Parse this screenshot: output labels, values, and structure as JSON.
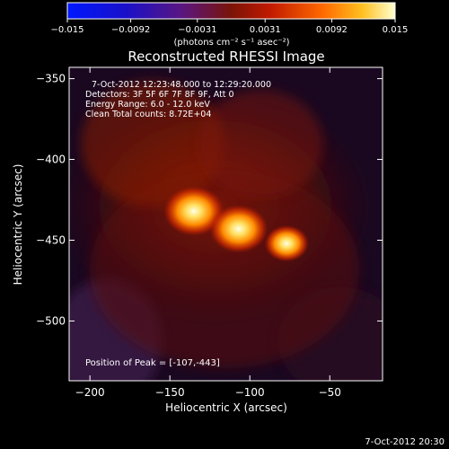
{
  "colorbar": {
    "tick_labels": [
      "-0.015",
      "-0.0092",
      "-0.0031",
      "0.0031",
      "0.0092",
      "0.015"
    ],
    "unit_label": "(photons cm⁻² s⁻¹ asec⁻²)",
    "range": [
      -0.015,
      0.015
    ]
  },
  "chart_data": {
    "type": "heatmap",
    "title": "Reconstructed RHESSI Image",
    "xlabel": "Heliocentric X (arcsec)",
    "ylabel": "Heliocentric Y (arcsec)",
    "xlim": [
      -213,
      -17
    ],
    "ylim": [
      -537,
      -343
    ],
    "x_ticks": [
      -200,
      -150,
      -100,
      -50
    ],
    "y_ticks": [
      -350,
      -400,
      -450,
      -500
    ],
    "sources": [
      {
        "x": -135,
        "y": -432,
        "peak": 0.015
      },
      {
        "x": -107,
        "y": -443,
        "peak": 0.0145
      },
      {
        "x": -77,
        "y": -452,
        "peak": 0.011
      }
    ],
    "annotations": [
      "7-Oct-2012 12:23:48.000 to 12:29:20.000",
      "Detectors: 3F 5F 6F 7F 8F 9F, Att 0",
      "Energy Range: 6.0 - 12.0 keV",
      "Clean    Total counts: 8.72E+04"
    ],
    "peak_position_label": "Position of Peak = [-107,-443]"
  },
  "footer": {
    "timestamp": "7-Oct-2012 20:30"
  }
}
